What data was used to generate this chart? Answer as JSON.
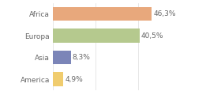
{
  "categories": [
    "Africa",
    "Europa",
    "Asia",
    "America"
  ],
  "values": [
    46.3,
    40.5,
    8.3,
    4.9
  ],
  "labels": [
    "46,3%",
    "40,5%",
    "8,3%",
    "4,9%"
  ],
  "bar_colors": [
    "#e8a87c",
    "#b5c98e",
    "#7b85b8",
    "#f0cc6e"
  ],
  "xlim": [
    0,
    58
  ],
  "background_color": "#ffffff",
  "label_fontsize": 6.5,
  "tick_fontsize": 6.5,
  "bar_height": 0.65,
  "grid_color": "#dddddd",
  "text_color": "#666666"
}
